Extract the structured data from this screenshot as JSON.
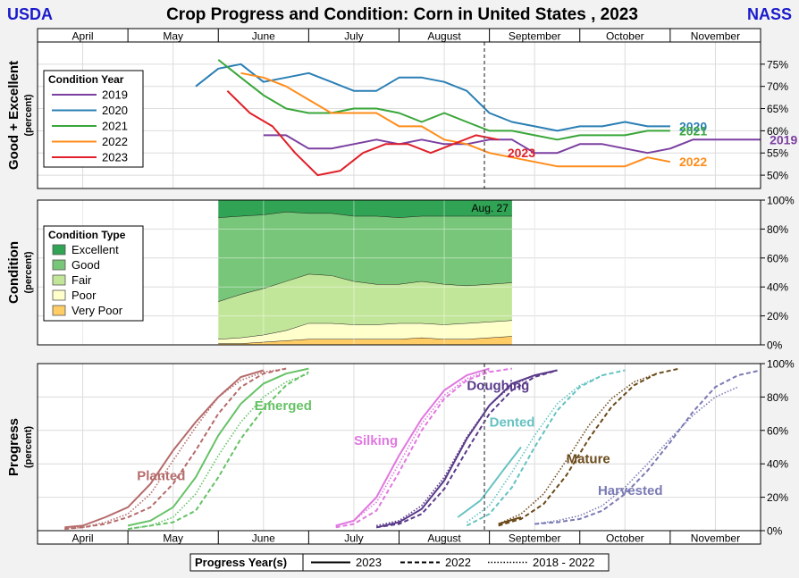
{
  "header": {
    "left": "USDA",
    "title": "Crop Progress and Condition: Corn in United States , 2023",
    "right": "NASS"
  },
  "colors": {
    "blue": "#1a1acc",
    "y2019": "#7b3fa0",
    "y2020": "#2a7fb5",
    "y2021": "#3aa63a",
    "y2022": "#ff8c1a",
    "y2023": "#e0202a"
  },
  "months": [
    "April",
    "May",
    "June",
    "July",
    "August",
    "September",
    "October",
    "November"
  ],
  "chart_data": [
    {
      "type": "line",
      "ylabel": "Good + Excellent",
      "ylabel_unit": "(percent)",
      "ylim": [
        47,
        80
      ],
      "yticks": [
        50,
        55,
        60,
        65,
        70,
        75
      ],
      "ytick_labels": [
        "50%",
        "55%",
        "60%",
        "65%",
        "70%",
        "75%"
      ],
      "legend_title": "Condition Year",
      "legend_position": "left",
      "current_week_label": "",
      "series": [
        {
          "name": "2019",
          "label": "2019",
          "color": "#7b3fa0",
          "x": [
            2.5,
            2.75,
            3.0,
            3.25,
            3.5,
            3.75,
            4.0,
            4.25,
            4.5,
            4.75,
            5.0,
            5.25,
            5.5,
            5.75,
            6.0,
            6.25,
            6.5,
            6.75,
            7.0,
            7.25,
            7.5,
            7.75,
            8.0
          ],
          "y": [
            59,
            59,
            56,
            56,
            57,
            58,
            57,
            58,
            57,
            57,
            58,
            58,
            55,
            55,
            57,
            57,
            56,
            55,
            56,
            58,
            58,
            58,
            58
          ]
        },
        {
          "name": "2020",
          "label": "2020",
          "color": "#2a7fb5",
          "x": [
            1.75,
            2.0,
            2.25,
            2.5,
            2.75,
            3.0,
            3.25,
            3.5,
            3.75,
            4.0,
            4.25,
            4.5,
            4.75,
            5.0,
            5.25,
            5.5,
            5.75,
            6.0,
            6.25,
            6.5,
            6.75,
            7.0
          ],
          "y": [
            70,
            74,
            75,
            71,
            72,
            73,
            71,
            69,
            69,
            72,
            72,
            71,
            69,
            64,
            62,
            61,
            60,
            61,
            61,
            62,
            61,
            61
          ]
        },
        {
          "name": "2021",
          "label": "2021",
          "color": "#3aa63a",
          "x": [
            2.0,
            2.25,
            2.5,
            2.75,
            3.0,
            3.25,
            3.5,
            3.75,
            4.0,
            4.25,
            4.5,
            4.75,
            5.0,
            5.25,
            5.5,
            5.75,
            6.0,
            6.25,
            6.5,
            6.75,
            7.0
          ],
          "y": [
            76,
            72,
            68,
            65,
            64,
            64,
            65,
            65,
            64,
            62,
            64,
            62,
            60,
            60,
            59,
            58,
            59,
            59,
            59,
            60,
            60
          ]
        },
        {
          "name": "2022",
          "label": "2022",
          "color": "#ff8c1a",
          "x": [
            2.25,
            2.5,
            2.75,
            3.0,
            3.25,
            3.5,
            3.75,
            4.0,
            4.25,
            4.5,
            4.75,
            5.0,
            5.25,
            5.5,
            5.75,
            6.0,
            6.25,
            6.5,
            6.75,
            7.0
          ],
          "y": [
            73,
            72,
            70,
            67,
            64,
            64,
            64,
            61,
            61,
            58,
            57,
            55,
            54,
            53,
            52,
            52,
            52,
            52,
            54,
            53
          ]
        },
        {
          "name": "2023",
          "label": "2023",
          "color": "#e0202a",
          "x": [
            2.1,
            2.35,
            2.6,
            2.85,
            3.1,
            3.35,
            3.6,
            3.85,
            4.1,
            4.35,
            4.6,
            4.85,
            5.1
          ],
          "y": [
            69,
            64,
            61,
            55,
            50,
            51,
            55,
            57,
            57,
            55,
            57,
            59,
            58
          ]
        }
      ],
      "end_labels": [
        {
          "text": "2020",
          "x": 7.1,
          "y": 61,
          "color": "#2a7fb5"
        },
        {
          "text": "2021",
          "x": 7.1,
          "y": 60,
          "color": "#3aa63a"
        },
        {
          "text": "2019",
          "x": 8.1,
          "y": 58,
          "color": "#7b3fa0"
        },
        {
          "text": "2023",
          "x": 5.2,
          "y": 55,
          "color": "#e0202a"
        },
        {
          "text": "2022",
          "x": 7.1,
          "y": 53,
          "color": "#ff8c1a"
        }
      ]
    },
    {
      "type": "area",
      "ylabel": "Condition",
      "ylabel_unit": "(percent)",
      "ylim": [
        0,
        100
      ],
      "yticks": [
        0,
        20,
        40,
        60,
        80,
        100
      ],
      "ytick_labels": [
        "0%",
        "20%",
        "40%",
        "60%",
        "80%",
        "100%"
      ],
      "legend_title": "Condition Type",
      "legend_position": "left",
      "date_label": "Aug. 27",
      "x": [
        2.0,
        2.25,
        2.5,
        2.75,
        3.0,
        3.25,
        3.5,
        3.75,
        4.0,
        4.25,
        4.5,
        4.75,
        5.0,
        5.25
      ],
      "categories": [
        "Very Poor",
        "Poor",
        "Fair",
        "Good",
        "Excellent"
      ],
      "colors": [
        "#ffcc66",
        "#ffffcc",
        "#c2e699",
        "#78c679",
        "#31a354"
      ],
      "series": [
        {
          "name": "Very Poor",
          "values": [
            1,
            1,
            2,
            3,
            4,
            4,
            4,
            4,
            4,
            5,
            4,
            4,
            5,
            6
          ]
        },
        {
          "name": "Poor",
          "values": [
            3,
            4,
            5,
            7,
            11,
            11,
            10,
            10,
            11,
            10,
            10,
            11,
            11,
            11
          ]
        },
        {
          "name": "Fair",
          "values": [
            26,
            30,
            32,
            34,
            34,
            33,
            30,
            28,
            27,
            29,
            28,
            26,
            26,
            26
          ]
        },
        {
          "name": "Good",
          "values": [
            58,
            54,
            51,
            48,
            42,
            43,
            45,
            47,
            46,
            45,
            47,
            48,
            47,
            46
          ]
        },
        {
          "name": "Excellent",
          "values": [
            12,
            11,
            10,
            8,
            9,
            9,
            11,
            11,
            12,
            11,
            11,
            11,
            11,
            11
          ]
        }
      ],
      "legend": [
        {
          "name": "Excellent",
          "color": "#31a354"
        },
        {
          "name": "Good",
          "color": "#78c679"
        },
        {
          "name": "Fair",
          "color": "#c2e699"
        },
        {
          "name": "Poor",
          "color": "#ffffcc"
        },
        {
          "name": "Very Poor",
          "color": "#ffcc66"
        }
      ]
    },
    {
      "type": "line",
      "ylabel": "Progress",
      "ylabel_unit": "(percent)",
      "ylim": [
        0,
        100
      ],
      "yticks": [
        0,
        20,
        40,
        60,
        80,
        100
      ],
      "ytick_labels": [
        "0%",
        "20%",
        "40%",
        "60%",
        "80%",
        "100%"
      ],
      "legend_title": "Progress Year(s)",
      "legend_position": "bottom",
      "legend": [
        {
          "name": "2023",
          "dash": "solid"
        },
        {
          "name": "2022",
          "dash": "dashed"
        },
        {
          "name": "2018 - 2022",
          "dash": "dotted"
        }
      ],
      "stages": [
        {
          "name": "Planted",
          "label": "Planted",
          "color": "#b56b6b",
          "label_x": 1.1,
          "label_y": 33,
          "y2023": {
            "x": [
              0.3,
              0.5,
              0.75,
              1.0,
              1.25,
              1.5,
              1.75,
              2.0,
              2.25,
              2.5
            ],
            "y": [
              2,
              3,
              8,
              14,
              28,
              48,
              65,
              80,
              92,
              96
            ]
          },
          "y2022": {
            "x": [
              0.3,
              0.5,
              0.75,
              1.0,
              1.25,
              1.5,
              1.75,
              2.0,
              2.25,
              2.5,
              2.75
            ],
            "y": [
              1,
              2,
              4,
              8,
              14,
              28,
              48,
              70,
              86,
              94,
              97
            ]
          },
          "y2018": {
            "x": [
              0.3,
              0.5,
              0.75,
              1.0,
              1.25,
              1.5,
              1.75,
              2.0,
              2.25,
              2.5,
              2.75
            ],
            "y": [
              1,
              2,
              5,
              10,
              22,
              42,
              62,
              80,
              90,
              95,
              97
            ]
          }
        },
        {
          "name": "Emerged",
          "label": "Emerged",
          "color": "#66c266",
          "label_x": 2.4,
          "label_y": 75,
          "y2023": {
            "x": [
              1.0,
              1.25,
              1.5,
              1.75,
              2.0,
              2.25,
              2.5,
              2.75,
              3.0
            ],
            "y": [
              3,
              6,
              14,
              32,
              57,
              76,
              88,
              94,
              97
            ]
          },
          "y2022": {
            "x": [
              1.0,
              1.25,
              1.5,
              1.75,
              2.0,
              2.25,
              2.5,
              2.75,
              3.0
            ],
            "y": [
              1,
              3,
              5,
              12,
              32,
              55,
              73,
              87,
              95
            ]
          },
          "y2018": {
            "x": [
              1.0,
              1.25,
              1.5,
              1.75,
              2.0,
              2.25,
              2.5,
              2.75,
              3.0
            ],
            "y": [
              1,
              3,
              8,
              22,
              45,
              65,
              80,
              89,
              94
            ]
          }
        },
        {
          "name": "Silking",
          "label": "Silking",
          "color": "#e078e0",
          "label_x": 3.5,
          "label_y": 54,
          "y2023": {
            "x": [
              3.3,
              3.5,
              3.75,
              4.0,
              4.25,
              4.5,
              4.75,
              5.0
            ],
            "y": [
              3,
              6,
              20,
              45,
              67,
              84,
              93,
              97
            ]
          },
          "y2022": {
            "x": [
              3.3,
              3.5,
              3.75,
              4.0,
              4.25,
              4.5,
              4.75,
              5.0,
              5.25
            ],
            "y": [
              2,
              4,
              12,
              35,
              60,
              79,
              90,
              95,
              97
            ]
          },
          "y2018": {
            "x": [
              3.3,
              3.5,
              3.75,
              4.0,
              4.25,
              4.5,
              4.75,
              5.0
            ],
            "y": [
              3,
              6,
              17,
              40,
              64,
              81,
              91,
              96
            ]
          }
        },
        {
          "name": "Doughing",
          "label": "Doughing",
          "color": "#5a3a8a",
          "label_x": 4.75,
          "label_y": 87,
          "y2023": {
            "x": [
              3.75,
              4.0,
              4.25,
              4.5,
              4.75,
              5.0,
              5.25,
              5.5,
              5.75
            ],
            "y": [
              2,
              5,
              13,
              30,
              55,
              75,
              88,
              93,
              96
            ]
          },
          "y2022": {
            "x": [
              3.75,
              4.0,
              4.25,
              4.5,
              4.75,
              5.0,
              5.25,
              5.5,
              5.75
            ],
            "y": [
              2,
              4,
              10,
              25,
              48,
              70,
              84,
              92,
              96
            ]
          },
          "y2018": {
            "x": [
              3.75,
              4.0,
              4.25,
              4.5,
              4.75,
              5.0,
              5.25,
              5.5
            ],
            "y": [
              3,
              6,
              15,
              32,
              56,
              75,
              87,
              93
            ]
          }
        },
        {
          "name": "Dented",
          "label": "Dented",
          "color": "#66c2c2",
          "label_x": 5.0,
          "label_y": 65,
          "y2023": {
            "x": [
              4.65,
              4.9,
              5.15,
              5.35
            ],
            "y": [
              8,
              18,
              36,
              50
            ]
          },
          "y2022": {
            "x": [
              4.75,
              5.0,
              5.25,
              5.5,
              5.75,
              6.0,
              6.25,
              6.5
            ],
            "y": [
              3,
              10,
              26,
              50,
              72,
              86,
              93,
              96
            ]
          },
          "y2018": {
            "x": [
              4.75,
              5.0,
              5.25,
              5.5,
              5.75,
              6.0,
              6.25
            ],
            "y": [
              5,
              15,
              35,
              57,
              76,
              87,
              93
            ]
          }
        },
        {
          "name": "Mature",
          "label": "Mature",
          "color": "#6b4a1a",
          "label_x": 5.85,
          "label_y": 43,
          "y2023": {
            "x": [
              5.1,
              5.35
            ],
            "y": [
              4,
              8
            ]
          },
          "y2022": {
            "x": [
              5.1,
              5.35,
              5.6,
              5.85,
              6.1,
              6.35,
              6.6,
              6.85,
              7.1
            ],
            "y": [
              3,
              7,
              16,
              33,
              55,
              74,
              87,
              94,
              97
            ]
          },
          "y2018": {
            "x": [
              5.1,
              5.35,
              5.6,
              5.85,
              6.1,
              6.35,
              6.6,
              6.85
            ],
            "y": [
              4,
              10,
              22,
              42,
              63,
              79,
              89,
              94
            ]
          }
        },
        {
          "name": "Harvested",
          "label": "Harvested",
          "color": "#7a7ab5",
          "label_x": 6.2,
          "label_y": 24,
          "y2022": {
            "x": [
              5.5,
              5.75,
              6.0,
              6.25,
              6.5,
              6.75,
              7.0,
              7.25,
              7.5,
              7.75,
              8.0
            ],
            "y": [
              4,
              5,
              7,
              12,
              22,
              36,
              53,
              71,
              86,
              93,
              96
            ]
          },
          "y2018": {
            "x": [
              5.5,
              5.75,
              6.0,
              6.25,
              6.5,
              6.75,
              7.0,
              7.25,
              7.5,
              7.75
            ],
            "y": [
              4,
              6,
              9,
              15,
              26,
              40,
              55,
              69,
              80,
              86
            ]
          }
        }
      ]
    }
  ]
}
